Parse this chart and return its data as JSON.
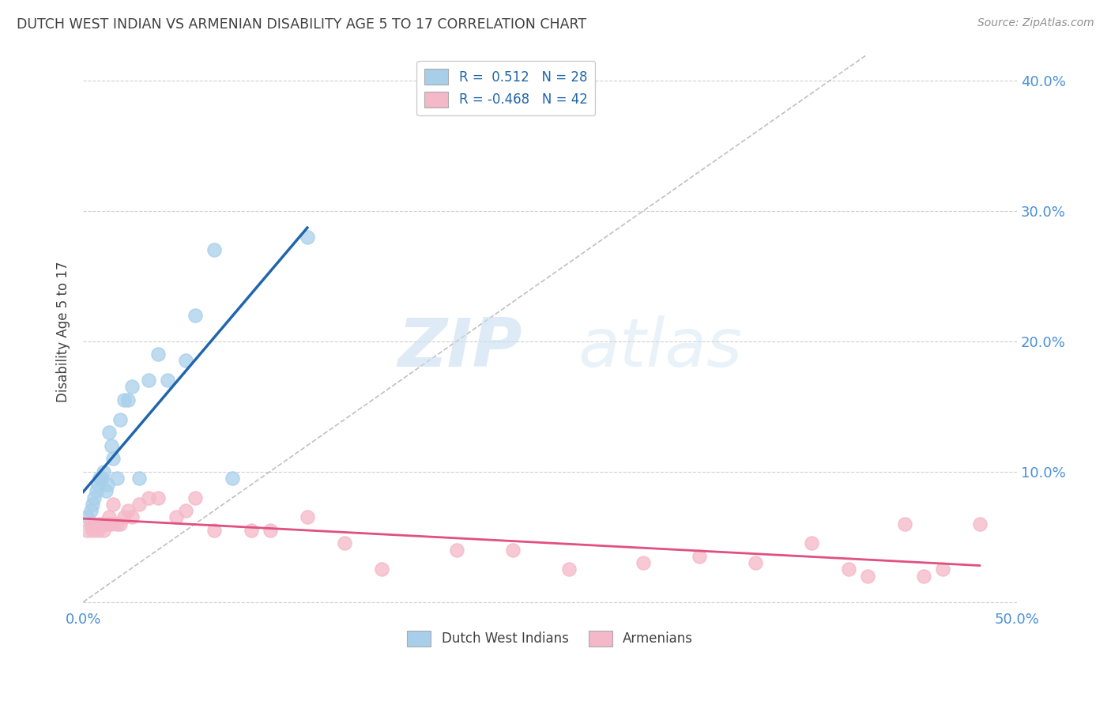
{
  "title": "DUTCH WEST INDIAN VS ARMENIAN DISABILITY AGE 5 TO 17 CORRELATION CHART",
  "source": "Source: ZipAtlas.com",
  "ylabel": "Disability Age 5 to 17",
  "xlim": [
    0.0,
    0.5
  ],
  "ylim": [
    -0.005,
    0.42
  ],
  "yticks": [
    0.0,
    0.1,
    0.2,
    0.3,
    0.4
  ],
  "ytick_labels": [
    "",
    "10.0%",
    "20.0%",
    "30.0%",
    "40.0%"
  ],
  "xticks": [
    0.0,
    0.05,
    0.1,
    0.15,
    0.2,
    0.25,
    0.3,
    0.35,
    0.4,
    0.45,
    0.5
  ],
  "xtick_labels": [
    "0.0%",
    "",
    "",
    "",
    "",
    "",
    "",
    "",
    "",
    "",
    "50.0%"
  ],
  "legend_R1": "R =  0.512",
  "legend_N1": "N = 28",
  "legend_R2": "R = -0.468",
  "legend_N2": "N = 42",
  "color_blue": "#a8cfea",
  "color_pink": "#f4b8c8",
  "color_blue_line": "#2166ac",
  "color_pink_line": "#e05080",
  "color_diag": "#c0c0c0",
  "color_grid": "#d0d0d0",
  "color_title": "#404040",
  "color_source": "#909090",
  "color_axis_labels": "#4a90d9",
  "watermark_zip": "ZIP",
  "watermark_atlas": "atlas",
  "dutch_x": [
    0.002,
    0.004,
    0.005,
    0.006,
    0.007,
    0.008,
    0.009,
    0.01,
    0.011,
    0.012,
    0.013,
    0.014,
    0.015,
    0.016,
    0.018,
    0.02,
    0.022,
    0.024,
    0.026,
    0.03,
    0.035,
    0.04,
    0.045,
    0.055,
    0.06,
    0.07,
    0.08,
    0.12
  ],
  "dutch_y": [
    0.065,
    0.07,
    0.075,
    0.08,
    0.085,
    0.09,
    0.095,
    0.095,
    0.1,
    0.085,
    0.09,
    0.13,
    0.12,
    0.11,
    0.095,
    0.14,
    0.155,
    0.155,
    0.165,
    0.095,
    0.17,
    0.19,
    0.17,
    0.185,
    0.22,
    0.27,
    0.095,
    0.28
  ],
  "armenian_x": [
    0.002,
    0.004,
    0.005,
    0.006,
    0.008,
    0.009,
    0.01,
    0.011,
    0.013,
    0.014,
    0.015,
    0.016,
    0.018,
    0.02,
    0.022,
    0.024,
    0.026,
    0.03,
    0.035,
    0.04,
    0.05,
    0.055,
    0.06,
    0.07,
    0.09,
    0.1,
    0.12,
    0.14,
    0.16,
    0.2,
    0.23,
    0.26,
    0.3,
    0.33,
    0.36,
    0.39,
    0.41,
    0.42,
    0.44,
    0.45,
    0.46,
    0.48
  ],
  "armenian_y": [
    0.055,
    0.06,
    0.055,
    0.06,
    0.055,
    0.06,
    0.06,
    0.055,
    0.06,
    0.065,
    0.06,
    0.075,
    0.06,
    0.06,
    0.065,
    0.07,
    0.065,
    0.075,
    0.08,
    0.08,
    0.065,
    0.07,
    0.08,
    0.055,
    0.055,
    0.055,
    0.065,
    0.045,
    0.025,
    0.04,
    0.04,
    0.025,
    0.03,
    0.035,
    0.03,
    0.045,
    0.025,
    0.02,
    0.06,
    0.02,
    0.025,
    0.06
  ]
}
